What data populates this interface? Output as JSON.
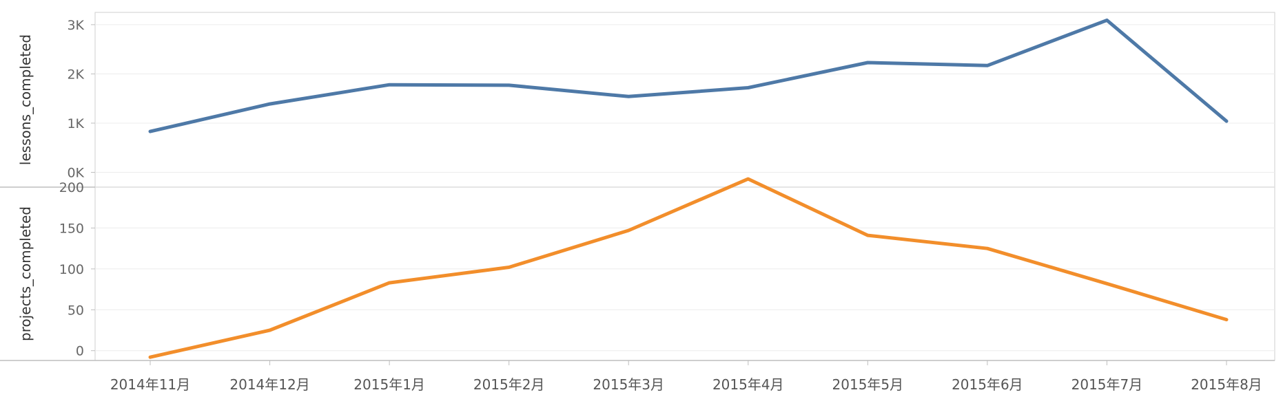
{
  "chart_data": {
    "type": "line",
    "categories": [
      "2014年11月",
      "2014年12月",
      "2015年1月",
      "2015年2月",
      "2015年3月",
      "2015年4月",
      "2015年5月",
      "2015年6月",
      "2015年7月",
      "2015年8月"
    ],
    "panels": [
      {
        "ylabel": "lessons_completed",
        "yticks": [
          "0K",
          "1K",
          "2K",
          "3K"
        ],
        "ytick_values": [
          0,
          1000,
          2000,
          3000
        ],
        "ylim": [
          -300,
          3250
        ],
        "color": "#4e79a7",
        "series": [
          {
            "values": [
              830,
              1390,
              1780,
              1770,
              1540,
              1720,
              2230,
              2170,
              3090,
              1040
            ]
          }
        ]
      },
      {
        "ylabel": "projects_completed",
        "yticks": [
          "0",
          "50",
          "100",
          "150",
          "200"
        ],
        "ytick_values": [
          0,
          50,
          100,
          150,
          200
        ],
        "ylim": [
          -12,
          200
        ],
        "color": "#f28e2b",
        "series": [
          {
            "values": [
              -8,
              25,
              83,
              102,
              147,
              210,
              141,
              125,
              82,
              38
            ]
          }
        ]
      }
    ],
    "grid": true
  }
}
